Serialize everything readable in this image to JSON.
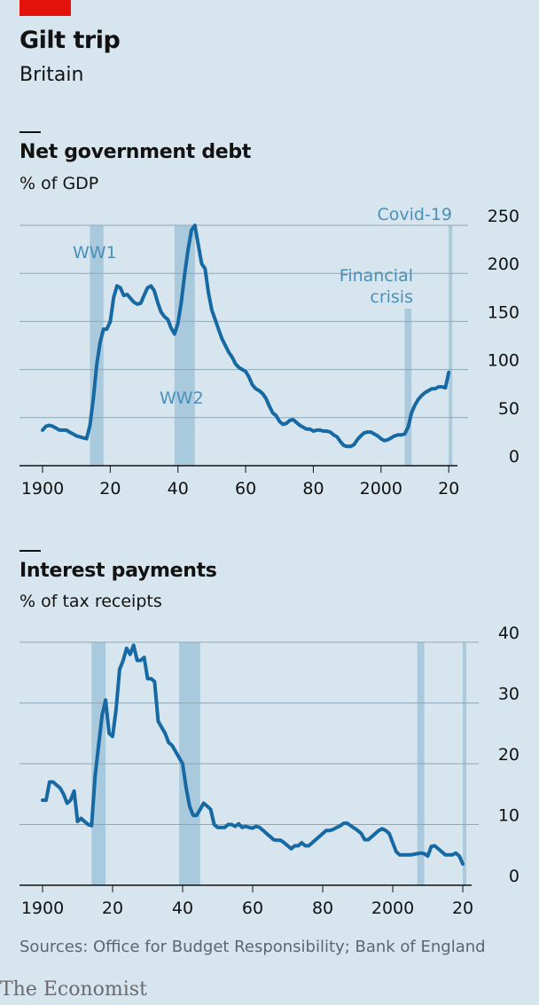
{
  "header": {
    "title": "Gilt trip",
    "subtitle": "Britain"
  },
  "colors": {
    "background": "#d7e5ee",
    "line": "#1769a4",
    "band": "#a9c9dd",
    "annotation": "#4a90b8",
    "grid": "#8fa7b5",
    "tag": "#e3120b"
  },
  "footer": {
    "source": "Sources: Office for Budget Responsibility; Bank of England",
    "logo": "The Economist"
  },
  "chart_data": [
    {
      "type": "line",
      "title": "Net government debt",
      "ylabel": "% of GDP",
      "x_tick_labels": [
        "1900",
        "20",
        "40",
        "60",
        "80",
        "2000",
        "20"
      ],
      "x_tick_values": [
        1900,
        1920,
        1940,
        1960,
        1980,
        2000,
        2020
      ],
      "y_tick_labels": [
        "0",
        "50",
        "100",
        "150",
        "200",
        "250"
      ],
      "y_tick_values": [
        0,
        50,
        100,
        150,
        200,
        250
      ],
      "xlim": [
        1900,
        2021
      ],
      "ylim": [
        0,
        250
      ],
      "grid": true,
      "shaded_periods": [
        {
          "label": "WW1",
          "start": 1914,
          "end": 1918
        },
        {
          "label": "WW2",
          "start": 1939,
          "end": 1945
        },
        {
          "label": "Financial crisis",
          "start": 2007,
          "end": 2009
        },
        {
          "label": "Covid-19",
          "start": 2020,
          "end": 2021
        }
      ],
      "series": [
        {
          "x": [
            1900,
            1901,
            1902,
            1903,
            1904,
            1905,
            1906,
            1907,
            1908,
            1909,
            1910,
            1911,
            1912,
            1913,
            1914,
            1915,
            1916,
            1917,
            1918,
            1919,
            1920,
            1921,
            1922,
            1923,
            1924,
            1925,
            1926,
            1927,
            1928,
            1929,
            1930,
            1931,
            1932,
            1933,
            1934,
            1935,
            1936,
            1937,
            1938,
            1939,
            1940,
            1941,
            1942,
            1943,
            1944,
            1945,
            1946,
            1947,
            1948,
            1949,
            1950,
            1951,
            1952,
            1953,
            1954,
            1955,
            1956,
            1957,
            1958,
            1959,
            1960,
            1961,
            1962,
            1963,
            1964,
            1965,
            1966,
            1967,
            1968,
            1969,
            1970,
            1971,
            1972,
            1973,
            1974,
            1975,
            1976,
            1977,
            1978,
            1979,
            1980,
            1981,
            1982,
            1983,
            1984,
            1985,
            1986,
            1987,
            1988,
            1989,
            1990,
            1991,
            1992,
            1993,
            1994,
            1995,
            1996,
            1997,
            1998,
            1999,
            2000,
            2001,
            2002,
            2003,
            2004,
            2005,
            2006,
            2007,
            2008,
            2009,
            2010,
            2011,
            2012,
            2013,
            2014,
            2015,
            2016,
            2017,
            2018,
            2019,
            2020
          ],
          "values": [
            37,
            41,
            42,
            41,
            39,
            37,
            37,
            37,
            35,
            33,
            31,
            30,
            29,
            28,
            42,
            70,
            105,
            128,
            142,
            142,
            150,
            175,
            187,
            185,
            177,
            178,
            174,
            170,
            168,
            169,
            177,
            185,
            187,
            182,
            170,
            160,
            155,
            152,
            143,
            137,
            148,
            170,
            200,
            225,
            245,
            250,
            230,
            210,
            205,
            180,
            162,
            152,
            142,
            132,
            125,
            118,
            113,
            106,
            102,
            100,
            98,
            92,
            84,
            80,
            78,
            75,
            70,
            62,
            55,
            52,
            46,
            43,
            44,
            47,
            48,
            45,
            42,
            40,
            38,
            38,
            36,
            37,
            37,
            36,
            36,
            35,
            32,
            30,
            25,
            21,
            20,
            20,
            22,
            27,
            31,
            34,
            35,
            35,
            33,
            31,
            28,
            26,
            27,
            29,
            31,
            32,
            32,
            33,
            40,
            55,
            63,
            69,
            73,
            76,
            78,
            80,
            80,
            82,
            82,
            81,
            97
          ]
        }
      ]
    },
    {
      "type": "line",
      "title": "Interest payments",
      "ylabel": "% of tax receipts",
      "x_tick_labels": [
        "1900",
        "20",
        "40",
        "60",
        "80",
        "2000",
        "20"
      ],
      "x_tick_values": [
        1900,
        1920,
        1940,
        1960,
        1980,
        2000,
        2020
      ],
      "y_tick_labels": [
        "0",
        "10",
        "20",
        "30",
        "40"
      ],
      "y_tick_values": [
        0,
        10,
        20,
        30,
        40
      ],
      "xlim": [
        1900,
        2021
      ],
      "ylim": [
        0,
        40
      ],
      "grid": true,
      "shaded_periods": [
        {
          "label": "WW1",
          "start": 1914,
          "end": 1918
        },
        {
          "label": "WW2",
          "start": 1939,
          "end": 1945
        },
        {
          "label": "Financial crisis",
          "start": 2007,
          "end": 2009
        },
        {
          "label": "Covid-19",
          "start": 2020,
          "end": 2021
        }
      ],
      "series": [
        {
          "x": [
            1900,
            1901,
            1902,
            1903,
            1904,
            1905,
            1906,
            1907,
            1908,
            1909,
            1910,
            1911,
            1912,
            1913,
            1914,
            1915,
            1916,
            1917,
            1918,
            1919,
            1920,
            1921,
            1922,
            1923,
            1924,
            1925,
            1926,
            1927,
            1928,
            1929,
            1930,
            1931,
            1932,
            1933,
            1934,
            1935,
            1936,
            1937,
            1938,
            1939,
            1940,
            1941,
            1942,
            1943,
            1944,
            1945,
            1946,
            1947,
            1948,
            1949,
            1950,
            1951,
            1952,
            1953,
            1954,
            1955,
            1956,
            1957,
            1958,
            1959,
            1960,
            1961,
            1962,
            1963,
            1964,
            1965,
            1966,
            1967,
            1968,
            1969,
            1970,
            1971,
            1972,
            1973,
            1974,
            1975,
            1976,
            1977,
            1978,
            1979,
            1980,
            1981,
            1982,
            1983,
            1984,
            1985,
            1986,
            1987,
            1988,
            1989,
            1990,
            1991,
            1992,
            1993,
            1994,
            1995,
            1996,
            1997,
            1998,
            1999,
            2000,
            2001,
            2002,
            2003,
            2004,
            2005,
            2006,
            2007,
            2008,
            2009,
            2010,
            2011,
            2012,
            2013,
            2014,
            2015,
            2016,
            2017,
            2018,
            2019,
            2020
          ],
          "values": [
            14,
            14,
            17,
            17,
            16.5,
            16,
            15,
            13.5,
            14,
            15.5,
            10.5,
            11,
            10.5,
            10,
            9.8,
            18,
            23,
            28,
            30.5,
            25,
            24.5,
            29,
            35.5,
            37,
            39,
            38,
            39.5,
            37,
            37,
            37.5,
            34,
            34,
            33.5,
            27,
            26,
            25,
            23.5,
            23,
            22,
            21,
            20,
            16,
            13,
            11.5,
            11.5,
            12.5,
            13.5,
            13,
            12.5,
            10,
            9.5,
            9.5,
            9.5,
            10,
            10,
            9.7,
            10.1,
            9.5,
            9.7,
            9.5,
            9.4,
            9.7,
            9.5,
            9,
            8.5,
            8,
            7.5,
            7.4,
            7.4,
            7,
            6.5,
            6,
            6.5,
            6.5,
            7,
            6.5,
            6.5,
            7,
            7.5,
            8,
            8.5,
            9,
            9,
            9.2,
            9.5,
            9.8,
            10.2,
            10.2,
            9.8,
            9.4,
            9,
            8.5,
            7.5,
            7.5,
            8,
            8.5,
            9,
            9.3,
            9,
            8.5,
            7,
            5.5,
            5,
            5,
            5,
            5,
            5.1,
            5.2,
            5.3,
            5.2,
            4.8,
            6.4,
            6.5,
            6,
            5.5,
            5,
            5,
            5,
            5.3,
            4.8,
            3.5
          ]
        }
      ]
    }
  ]
}
